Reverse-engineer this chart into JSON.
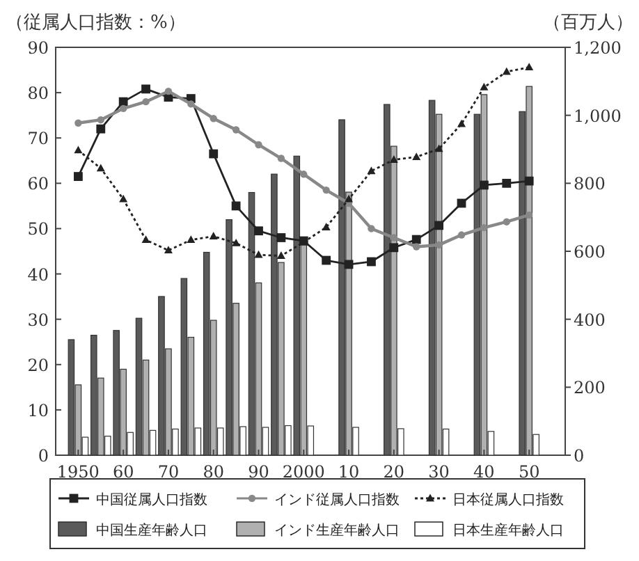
{
  "chart_data": {
    "type": "bar",
    "ylabel": "（従属人口指数：%）",
    "y2label": "（百万人）",
    "xlim": [
      1945,
      2058
    ],
    "xticks": [
      {
        "value": 1950,
        "label": "1950"
      },
      {
        "value": 1960,
        "label": "60"
      },
      {
        "value": 1970,
        "label": "70"
      },
      {
        "value": 1980,
        "label": "80"
      },
      {
        "value": 1990,
        "label": "90"
      },
      {
        "value": 2000,
        "label": "2000"
      },
      {
        "value": 2010,
        "label": "10"
      },
      {
        "value": 2020,
        "label": "20"
      },
      {
        "value": 2030,
        "label": "30"
      },
      {
        "value": 2040,
        "label": "40"
      },
      {
        "value": 2050,
        "label": "50"
      }
    ],
    "ylim": [
      0,
      90
    ],
    "yticks": [
      0,
      10,
      20,
      30,
      40,
      50,
      60,
      70,
      80,
      90
    ],
    "y2lim": [
      0,
      1200
    ],
    "y2ticks": [
      0,
      200,
      400,
      600,
      800,
      {
        "value": 1000,
        "label": "1,000"
      },
      {
        "value": 1200,
        "label": "1,200"
      }
    ],
    "legend": "bottom",
    "grid": false,
    "series": [
      {
        "name": "中国従属人口指数",
        "type": "line",
        "axis": "y",
        "marker": "square",
        "line_style": "solid",
        "color": "#222222",
        "x": [
          1950,
          1955,
          1960,
          1965,
          1970,
          1975,
          1980,
          1985,
          1990,
          1995,
          2000,
          2005,
          2010,
          2015,
          2020,
          2025,
          2030,
          2035,
          2040,
          2045,
          2050
        ],
        "values": [
          61.5,
          72,
          78,
          80.8,
          79,
          78.7,
          66.5,
          55,
          49.5,
          48,
          47.3,
          43,
          42.1,
          42.7,
          45.8,
          47.6,
          50.7,
          55.6,
          59.6,
          60,
          60.5
        ]
      },
      {
        "name": "インド従属人口指数",
        "type": "line",
        "axis": "y",
        "marker": "circle",
        "line_style": "solid",
        "color": "#888888",
        "x": [
          1950,
          1955,
          1960,
          1965,
          1970,
          1975,
          1980,
          1985,
          1990,
          1995,
          2000,
          2005,
          2010,
          2015,
          2020,
          2025,
          2030,
          2035,
          2040,
          2045,
          2050
        ],
        "values": [
          73.3,
          74,
          76.5,
          78,
          80.3,
          77.5,
          74.3,
          71.8,
          68.5,
          65.5,
          62,
          58.5,
          55.6,
          50,
          48,
          46,
          46.4,
          48.6,
          50.2,
          51.5,
          53
        ]
      },
      {
        "name": "日本従属人口指数",
        "type": "line",
        "axis": "y",
        "marker": "triangle",
        "line_style": "dotted",
        "color": "#222222",
        "x": [
          1950,
          1955,
          1960,
          1965,
          1970,
          1975,
          1980,
          1985,
          1990,
          1995,
          2000,
          2005,
          2010,
          2015,
          2020,
          2025,
          2030,
          2035,
          2040,
          2045,
          2050
        ],
        "values": [
          67.3,
          63.3,
          56.5,
          47.5,
          45.2,
          47.5,
          48.3,
          46.8,
          44.2,
          44,
          47,
          50.3,
          56.5,
          62.7,
          65.2,
          65.8,
          67.6,
          73.1,
          81.2,
          84.6,
          85.6
        ]
      },
      {
        "name": "中国生産年齢人口",
        "axis": "y2",
        "color": "#5a5a5a",
        "x": [
          1950,
          1955,
          1960,
          1965,
          1970,
          1975,
          1980,
          1985,
          1990,
          1995,
          2000,
          2010,
          2020,
          2030,
          2040,
          2050
        ],
        "values": [
          340,
          353,
          367,
          403,
          467,
          520,
          597,
          693,
          773,
          827,
          880,
          987,
          1032,
          1044,
          1003,
          1011
        ]
      },
      {
        "name": "インド生産年齢人口",
        "axis": "y2",
        "color": "#b0b0b0",
        "x": [
          1950,
          1955,
          1960,
          1965,
          1970,
          1975,
          1980,
          1985,
          1990,
          1995,
          2000,
          2010,
          2020,
          2030,
          2040,
          2050
        ],
        "values": [
          207,
          227,
          253,
          280,
          313,
          347,
          397,
          447,
          507,
          567,
          620,
          774,
          909,
          1003,
          1061,
          1085
        ]
      },
      {
        "name": "日本生産年齢人口",
        "axis": "y2",
        "color": "#ffffff",
        "x": [
          1950,
          1955,
          1960,
          1965,
          1970,
          1975,
          1980,
          1985,
          1990,
          1995,
          2000,
          2010,
          2020,
          2030,
          2040,
          2050
        ],
        "values": [
          53,
          56,
          67,
          73,
          77,
          80,
          80,
          84,
          82,
          87,
          86,
          82,
          78,
          77,
          70,
          61
        ]
      }
    ]
  }
}
